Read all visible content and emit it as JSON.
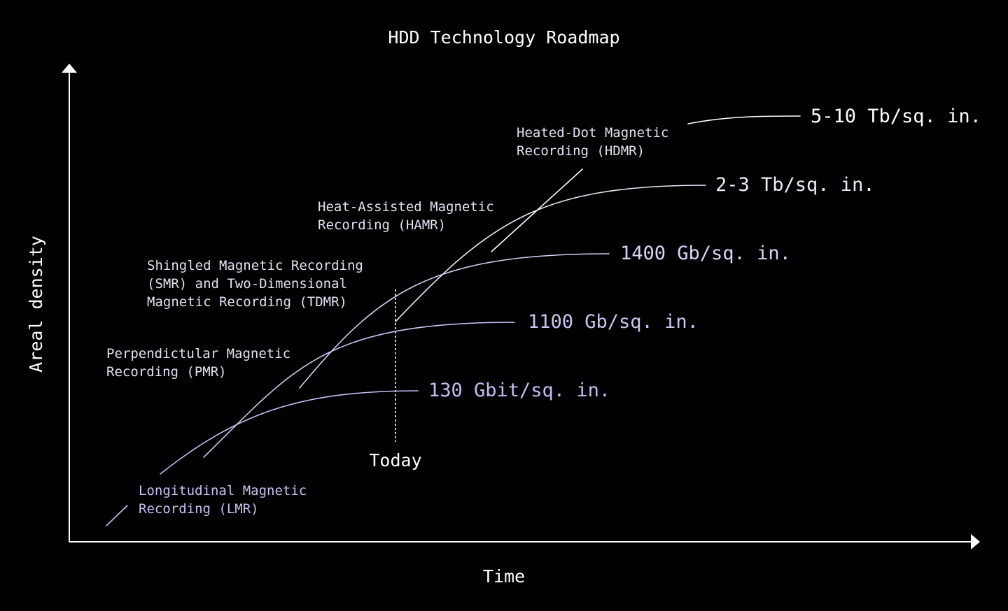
{
  "title": "HDD Technology Roadmap",
  "x_axis_label": "Time",
  "y_axis_label": "Areal density",
  "today_label": "Today",
  "colors": {
    "background": "#000000",
    "axis": "#ffffff",
    "lavender": "#c6bdf3",
    "pale": "#e9e6f6",
    "white": "#ffffff"
  },
  "technologies": [
    {
      "id": "lmr",
      "lines": [
        "Longitudinal Magnetic",
        "Recording (LMR)"
      ],
      "density": "130 Gbit/sq. in."
    },
    {
      "id": "pmr",
      "lines": [
        "Perpendictular Magnetic",
        "Recording (PMR)"
      ],
      "density": "1100 Gb/sq. in."
    },
    {
      "id": "smr",
      "lines": [
        "Shingled Magnetic Recording",
        "(SMR) and Two-Dimensional",
        "Magnetic Recording (TDMR)"
      ],
      "density": "1400 Gb/sq. in."
    },
    {
      "id": "hamr",
      "lines": [
        "Heat-Assisted Magnetic",
        "Recording (HAMR)"
      ],
      "density": "2-3 Tb/sq. in."
    },
    {
      "id": "hdmr",
      "lines": [
        "Heated-Dot Magnetic",
        "Recording (HDMR)"
      ],
      "density": "5-10 Tb/sq. in."
    }
  ]
}
